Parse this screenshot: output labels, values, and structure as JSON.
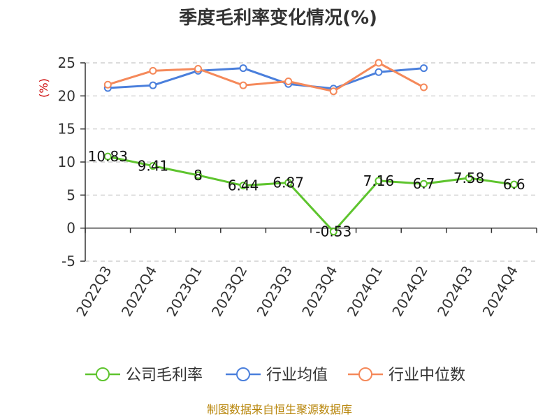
{
  "chart_data": {
    "type": "line",
    "title": "季度毛利率变化情况(%)",
    "ylabel": "(%)",
    "xlabel": "",
    "categories": [
      "2022Q3",
      "2022Q4",
      "2023Q1",
      "2023Q2",
      "2023Q3",
      "2023Q4",
      "2024Q1",
      "2024Q2",
      "2024Q3",
      "2024Q4"
    ],
    "ylim": [
      -5,
      25
    ],
    "yticks": [
      -5,
      0,
      5,
      10,
      15,
      20,
      25
    ],
    "grid": "horizontal-dashed",
    "legend_position": "bottom",
    "series": [
      {
        "name": "公司毛利率",
        "color": "#5ec42e",
        "values": [
          10.83,
          9.41,
          8,
          6.44,
          6.87,
          -0.53,
          7.16,
          6.7,
          7.58,
          6.6
        ],
        "labels": [
          "10.83",
          "9.41",
          "8",
          "6.44",
          "6.87",
          "-0.53",
          "7.16",
          "6.7",
          "7.58",
          "6.6"
        ]
      },
      {
        "name": "行业均值",
        "color": "#4a7fdc",
        "values": [
          21.2,
          21.6,
          23.8,
          24.2,
          21.8,
          21.1,
          23.6,
          24.2,
          null,
          null
        ]
      },
      {
        "name": "行业中位数",
        "color": "#f5895a",
        "values": [
          21.7,
          23.8,
          24.1,
          21.6,
          22.2,
          20.7,
          25.0,
          21.3,
          null,
          null
        ]
      }
    ],
    "source": "制图数据来自恒生聚源数据库"
  }
}
